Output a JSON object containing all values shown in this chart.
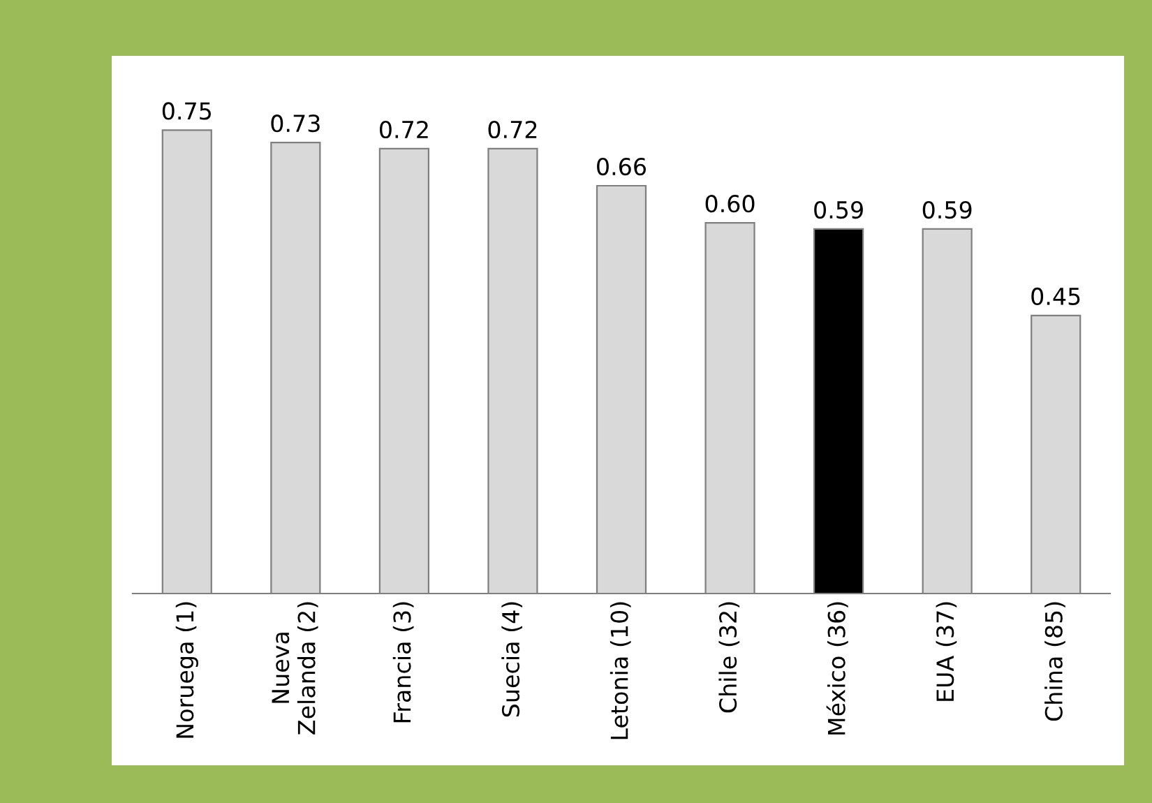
{
  "chart_data": {
    "type": "bar",
    "categories": [
      "Noruega (1)",
      "Nueva\nZelanda (2)",
      "Francia (3)",
      "Suecia (4)",
      "Letonia (10)",
      "Chile (32)",
      "México (36)",
      "EUA (37)",
      "China (85)"
    ],
    "values": [
      0.75,
      0.73,
      0.72,
      0.72,
      0.66,
      0.6,
      0.59,
      0.59,
      0.45
    ],
    "value_labels": [
      "0.75",
      "0.73",
      "0.72",
      "0.72",
      "0.66",
      "0.60",
      "0.59",
      "0.59",
      "0.45"
    ],
    "colors": [
      "#d9d9d9",
      "#d9d9d9",
      "#d9d9d9",
      "#d9d9d9",
      "#d9d9d9",
      "#d9d9d9",
      "#000000",
      "#d9d9d9",
      "#d9d9d9"
    ],
    "grid": false
  }
}
